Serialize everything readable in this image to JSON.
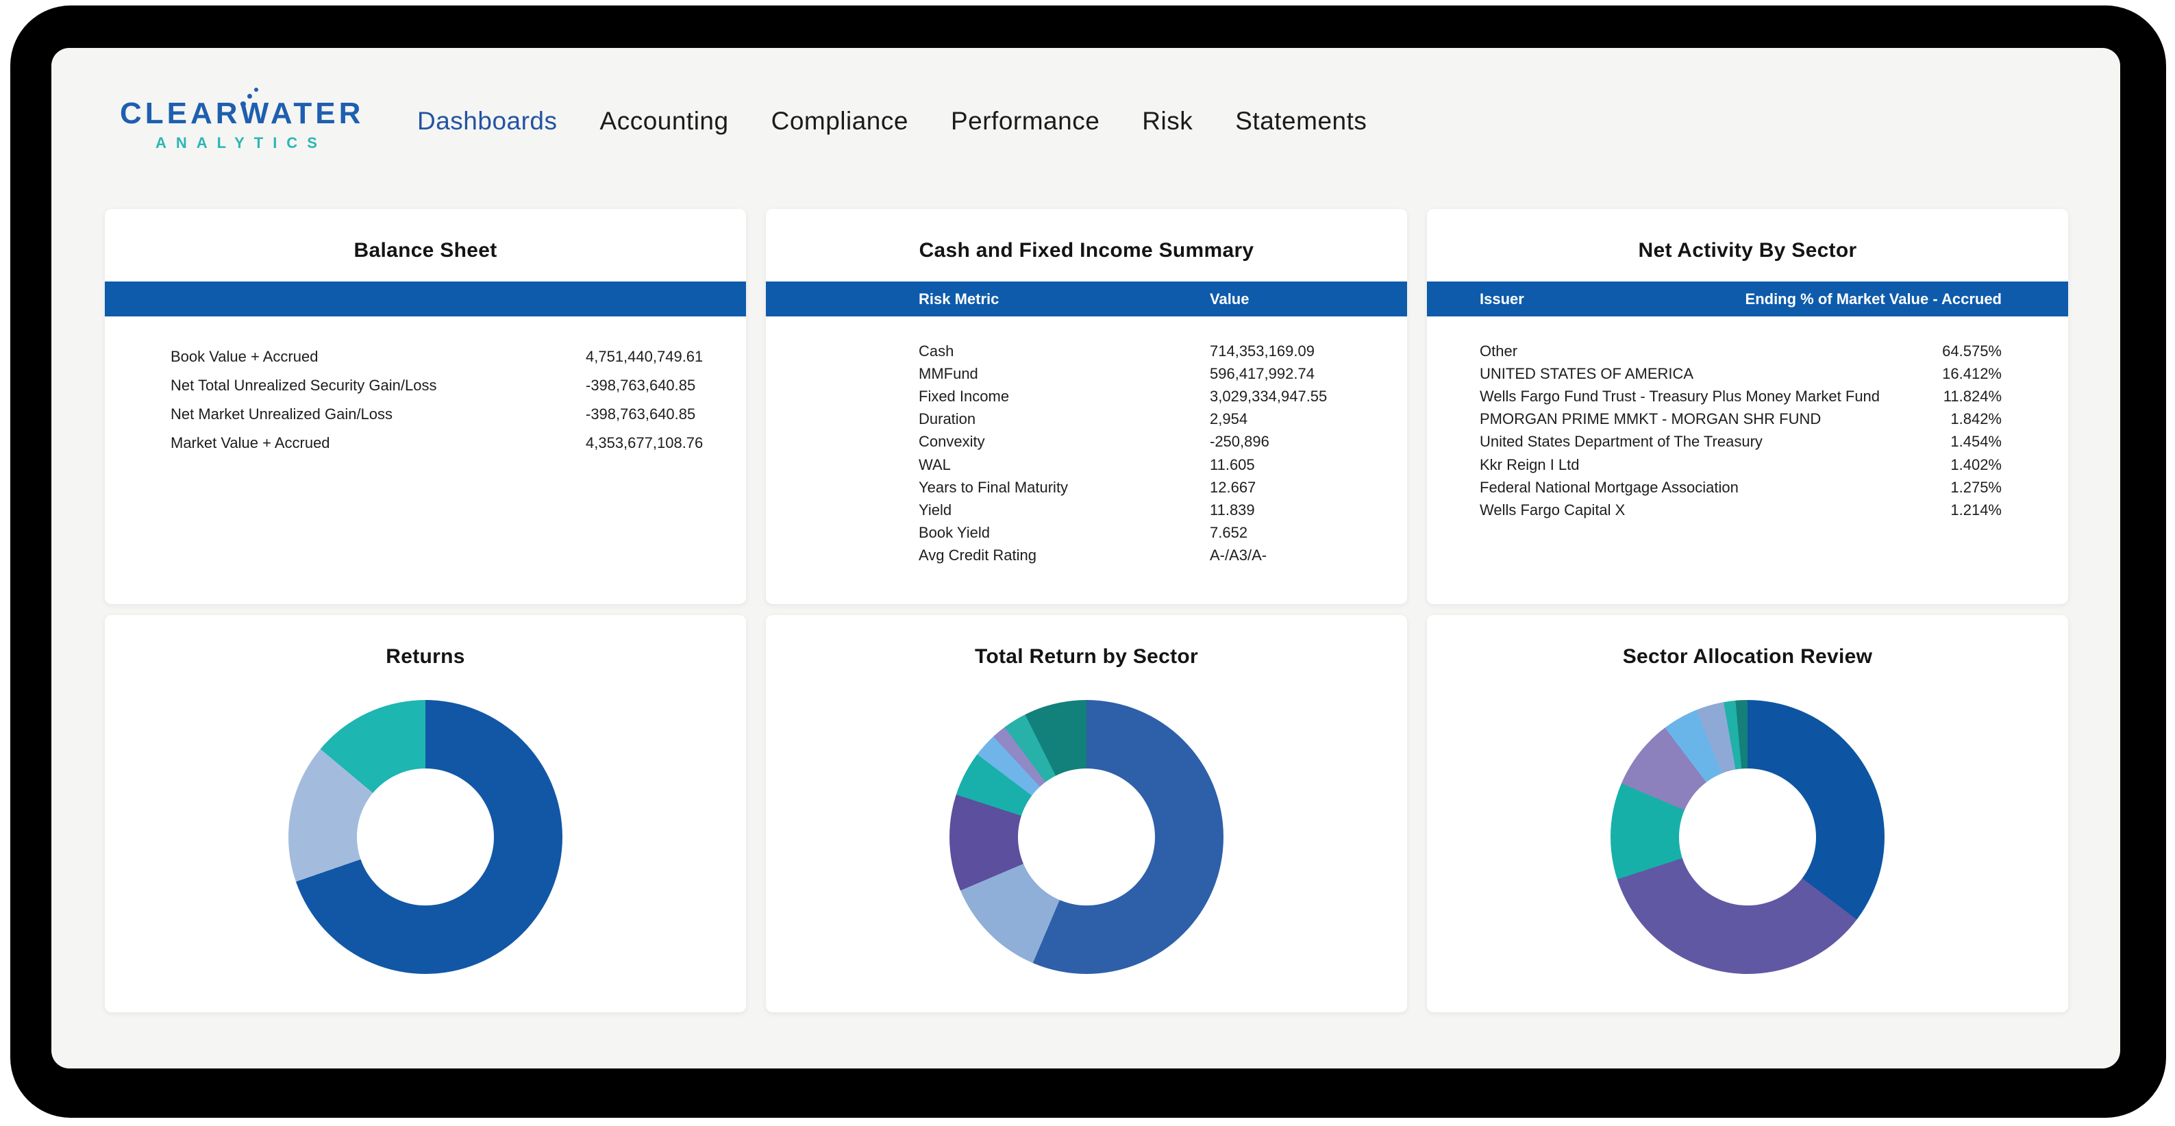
{
  "brand": {
    "name": "CLEARWATER",
    "subtitle": "ANALYTICS"
  },
  "nav": {
    "items": [
      {
        "label": "Dashboards",
        "active": true
      },
      {
        "label": "Accounting",
        "active": false
      },
      {
        "label": "Compliance",
        "active": false
      },
      {
        "label": "Performance",
        "active": false
      },
      {
        "label": "Risk",
        "active": false
      },
      {
        "label": "Statements",
        "active": false
      }
    ]
  },
  "colors": {
    "table_header_bar": "#0E5BAB",
    "nav_active": "#2353A4",
    "logo_blue": "#1E5FAF",
    "logo_teal": "#2BB6B4",
    "page_background": "#F5F5F3",
    "frame": "#000000"
  },
  "cards": {
    "balance_sheet": {
      "title": "Balance Sheet",
      "rows": [
        {
          "label": "Book Value + Accrued",
          "value": "4,751,440,749.61"
        },
        {
          "label": "Net Total Unrealized Security Gain/Loss",
          "value": "-398,763,640.85"
        },
        {
          "label": "Net Market Unrealized Gain/Loss",
          "value": "-398,763,640.85"
        },
        {
          "label": "Market Value + Accrued",
          "value": "4,353,677,108.76"
        }
      ]
    },
    "cash_fixed_income": {
      "title": "Cash and Fixed Income Summary",
      "headers": [
        "Risk Metric",
        "Value"
      ],
      "rows": [
        {
          "label": "Cash",
          "value": "714,353,169.09"
        },
        {
          "label": "MMFund",
          "value": "596,417,992.74"
        },
        {
          "label": "Fixed Income",
          "value": "3,029,334,947.55"
        },
        {
          "label": "Duration",
          "value": "2,954"
        },
        {
          "label": "Convexity",
          "value": "-250,896"
        },
        {
          "label": "WAL",
          "value": "11.605"
        },
        {
          "label": "Years to Final Maturity",
          "value": "12.667"
        },
        {
          "label": "Yield",
          "value": "11.839"
        },
        {
          "label": "Book Yield",
          "value": "7.652"
        },
        {
          "label": "Avg Credit Rating",
          "value": "A-/A3/A-"
        }
      ]
    },
    "net_activity": {
      "title": "Net Activity By Sector",
      "headers": [
        "Issuer",
        "Ending % of Market Value - Accrued"
      ],
      "rows": [
        {
          "label": "Other",
          "value": "64.575%"
        },
        {
          "label": "UNITED STATES OF AMERICA",
          "value": "16.412%"
        },
        {
          "label": "Wells Fargo Fund Trust - Treasury Plus Money Market Fund",
          "value": "11.824%"
        },
        {
          "label": "PMORGAN PRIME MMKT - MORGAN SHR FUND",
          "value": "1.842%"
        },
        {
          "label": "United States Department of The Treasury",
          "value": "1.454%"
        },
        {
          "label": "Kkr Reign I Ltd",
          "value": "1.402%"
        },
        {
          "label": "Federal National Mortgage Association",
          "value": "1.275%"
        },
        {
          "label": "Wells Fargo Capital X",
          "value": "1.214%"
        }
      ]
    }
  },
  "chart_data": [
    {
      "type": "pie",
      "title": "Returns",
      "style": "donut",
      "hole_ratio": 0.5,
      "legend": "none",
      "labels_shown": false,
      "segments": [
        {
          "name": "segment-1-dark-blue",
          "color": "#1157A6",
          "value": 69.7
        },
        {
          "name": "segment-2-periwinkle",
          "color": "#A3BCDD",
          "value": 16.4
        },
        {
          "name": "segment-3-teal",
          "color": "#1DB6B1",
          "value": 13.9
        }
      ]
    },
    {
      "type": "pie",
      "title": "Total Return by Sector",
      "style": "donut",
      "hole_ratio": 0.5,
      "legend": "none",
      "labels_shown": false,
      "segments": [
        {
          "name": "segment-1-dark-blue",
          "color": "#2E5FA9",
          "value": 56.4
        },
        {
          "name": "segment-2-periwinkle",
          "color": "#8FAFD8",
          "value": 12.2
        },
        {
          "name": "segment-3-purple",
          "color": "#5B4F9E",
          "value": 11.4
        },
        {
          "name": "segment-4-teal",
          "color": "#19AFAA",
          "value": 5.3
        },
        {
          "name": "segment-5-sky-blue",
          "color": "#6FB5E9",
          "value": 2.8
        },
        {
          "name": "segment-6-lavender",
          "color": "#9089C5",
          "value": 1.7
        },
        {
          "name": "segment-7-teal",
          "color": "#27B1A8",
          "value": 2.8
        },
        {
          "name": "segment-8-dark-teal",
          "color": "#12807B",
          "value": 7.4
        }
      ]
    },
    {
      "type": "pie",
      "title": "Sector Allocation Review",
      "style": "donut",
      "hole_ratio": 0.5,
      "legend": "none",
      "labels_shown": false,
      "segments": [
        {
          "name": "segment-1-dark-blue",
          "color": "#0D55A3",
          "value": 35.3
        },
        {
          "name": "segment-2-purple",
          "color": "#6158A4",
          "value": 34.7
        },
        {
          "name": "segment-3-teal",
          "color": "#17B0A9",
          "value": 11.4
        },
        {
          "name": "segment-4-lavender",
          "color": "#8C80BD",
          "value": 8.3
        },
        {
          "name": "segment-5-sky-blue",
          "color": "#69B5E9",
          "value": 4.2
        },
        {
          "name": "segment-6-periwinkle",
          "color": "#8FA9D6",
          "value": 3.3
        },
        {
          "name": "segment-7-teal",
          "color": "#20B1A9",
          "value": 1.4
        },
        {
          "name": "segment-8-dark-teal",
          "color": "#157F79",
          "value": 1.4
        }
      ]
    }
  ]
}
